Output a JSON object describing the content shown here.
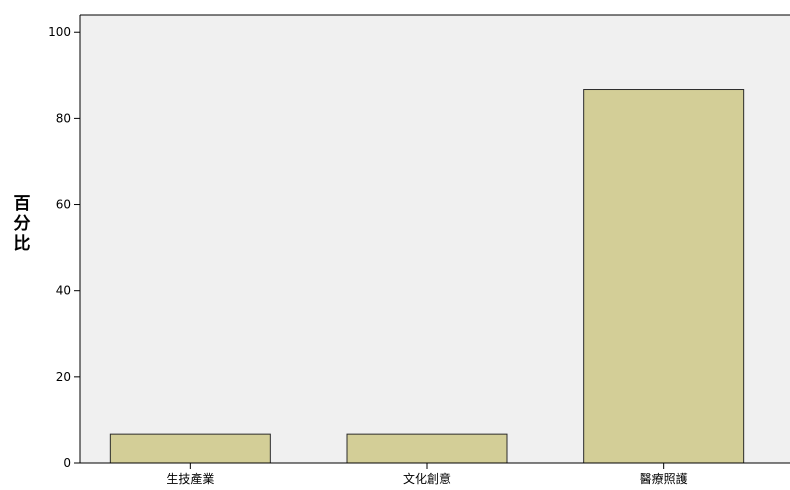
{
  "chart_data": {
    "type": "bar",
    "title": "",
    "xlabel": "",
    "ylabel": "百分比",
    "categories": [
      "生技產業",
      "文化創意",
      "醫療照護"
    ],
    "values": [
      6.7,
      6.7,
      86.7
    ],
    "ylim": [
      0,
      104
    ],
    "yticks": [
      0,
      20,
      40,
      60,
      80,
      100
    ],
    "grid": false,
    "legend": "none",
    "colors": {
      "plot_background": "#f0f0f0",
      "bar_fill": "#d3ce97",
      "bar_stroke": "#2b2b2b",
      "axis": "#000000"
    }
  }
}
